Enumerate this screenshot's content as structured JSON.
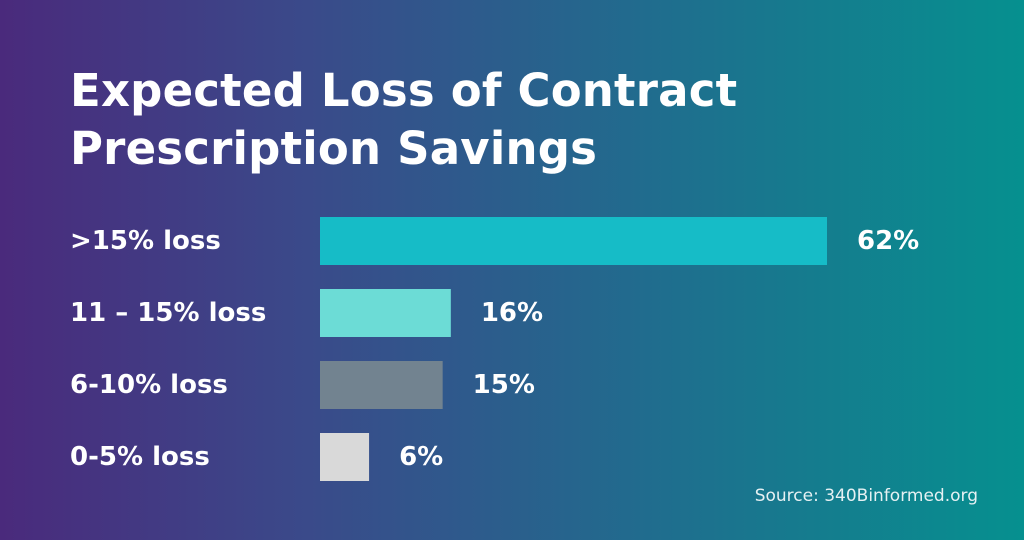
{
  "chart_data": {
    "type": "bar",
    "orientation": "horizontal",
    "title": "Expected Loss of Contract Prescription Savings",
    "categories": [
      ">15% loss",
      "11 – 15% loss",
      "6-10% loss",
      "0-5% loss"
    ],
    "values": [
      62,
      16,
      15,
      6
    ],
    "value_labels": [
      "62%",
      "16%",
      "15%",
      "6%"
    ],
    "bar_colors": [
      "#16bcc7",
      "#6cdcd6",
      "#728390",
      "#d9d9d9"
    ],
    "xlim": [
      0,
      62
    ],
    "grid": false,
    "legend": "none"
  },
  "source": "Source: 340Binformed.org",
  "colors": {
    "background_start": "#4a2a7c",
    "background_end": "#06908f",
    "text": "#ffffff"
  }
}
